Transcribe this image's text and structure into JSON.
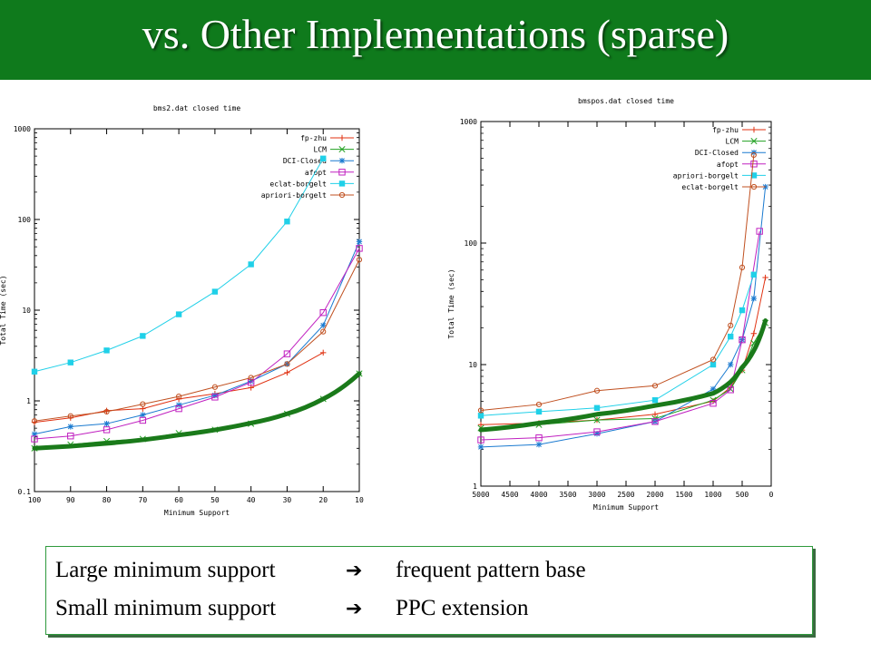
{
  "slide": {
    "title": "vs. Other Implementations (sparse)",
    "title_bar_color": "#0f7a1c",
    "notes": [
      {
        "label": "Large minimum support",
        "arrow": "➔",
        "result": "frequent pattern base"
      },
      {
        "label": "Small minimum support",
        "arrow": "➔",
        "result": "PPC extension"
      }
    ]
  },
  "chart_data": [
    {
      "type": "line",
      "title": "bms2.dat closed time",
      "xlabel": "Minimum Support",
      "ylabel": "Total Time (sec)",
      "y_scale": "log",
      "xlim": [
        100,
        10
      ],
      "ylim": [
        0.1,
        1000
      ],
      "x_ticks": [
        "100",
        "90",
        "80",
        "70",
        "60",
        "50",
        "40",
        "30",
        "20",
        "10"
      ],
      "y_ticks": [
        "0.1",
        "1",
        "10",
        "100",
        "1000"
      ],
      "legend_position": "top-right",
      "x": [
        100,
        90,
        80,
        70,
        60,
        50,
        40,
        30,
        20,
        10
      ],
      "series": [
        {
          "name": "fp-zhu",
          "color": "#e03010",
          "marker": "plus",
          "values": [
            0.58,
            0.65,
            0.78,
            0.82,
            1.05,
            1.2,
            1.4,
            2.05,
            3.4,
            null
          ]
        },
        {
          "name": "LCM",
          "color": "#20a020",
          "marker": "x",
          "values": [
            0.3,
            0.33,
            0.36,
            0.38,
            0.44,
            0.48,
            0.56,
            0.72,
            1.05,
            2.0
          ]
        },
        {
          "name": "DCI-Closed",
          "color": "#1a7ad0",
          "marker": "star",
          "values": [
            0.43,
            0.52,
            0.56,
            0.7,
            0.9,
            1.15,
            1.65,
            2.55,
            6.8,
            57
          ]
        },
        {
          "name": "afopt",
          "color": "#c020c0",
          "marker": "open-square",
          "values": [
            0.38,
            0.41,
            0.48,
            0.61,
            0.82,
            1.1,
            1.6,
            3.3,
            9.4,
            48
          ]
        },
        {
          "name": "eclat-borgelt",
          "color": "#20d0e8",
          "marker": "filled-square",
          "values": [
            2.1,
            2.65,
            3.6,
            5.2,
            9,
            16,
            32,
            95,
            470,
            null
          ]
        },
        {
          "name": "apriori-borgelt",
          "color": "#c05020",
          "marker": "circle",
          "values": [
            0.6,
            0.68,
            0.76,
            0.92,
            1.12,
            1.42,
            1.8,
            2.55,
            5.8,
            36
          ]
        }
      ],
      "annotation_curve": {
        "color": "#1a7a1a",
        "x": [
          100,
          80,
          60,
          40,
          30,
          20,
          10
        ],
        "values": [
          0.3,
          0.34,
          0.42,
          0.57,
          0.72,
          1.05,
          2.0
        ]
      }
    },
    {
      "type": "line",
      "title": "bmspos.dat closed time",
      "xlabel": "Minimum Support",
      "ylabel": "Total Time (sec)",
      "y_scale": "log",
      "xlim": [
        5000,
        0
      ],
      "ylim": [
        1,
        1000
      ],
      "x_ticks": [
        "5000",
        "4500",
        "4000",
        "3500",
        "3000",
        "2500",
        "2000",
        "1500",
        "1000",
        "500",
        "0"
      ],
      "y_ticks": [
        "1",
        "10",
        "100",
        "1000"
      ],
      "legend_position": "top-right",
      "series": [
        {
          "name": "fp-zhu",
          "color": "#e03010",
          "marker": "plus",
          "x": [
            5000,
            4000,
            3000,
            2000,
            1000,
            700,
            500,
            300,
            100
          ],
          "values": [
            3.2,
            3.3,
            3.5,
            3.9,
            5.0,
            6.5,
            9,
            18,
            52
          ]
        },
        {
          "name": "LCM",
          "color": "#20a020",
          "marker": "x",
          "x": [
            5000,
            4000,
            3000,
            2000,
            1000,
            700,
            500,
            300,
            100
          ],
          "values": [
            3.0,
            3.2,
            3.5,
            3.6,
            5.1,
            6.3,
            9,
            15,
            22
          ]
        },
        {
          "name": "DCI-Closed",
          "color": "#1a7ad0",
          "marker": "star",
          "x": [
            5000,
            4000,
            3000,
            2000,
            1000,
            700,
            500,
            300,
            100
          ],
          "values": [
            2.1,
            2.2,
            2.7,
            3.4,
            6.3,
            10,
            16,
            35,
            290
          ]
        },
        {
          "name": "afopt",
          "color": "#c020c0",
          "marker": "open-square",
          "x": [
            5000,
            4000,
            3000,
            2000,
            1000,
            700,
            500,
            200
          ],
          "values": [
            2.4,
            2.5,
            2.8,
            3.4,
            4.8,
            6.2,
            16,
            125
          ]
        },
        {
          "name": "apriori-borgelt",
          "color": "#20d0e8",
          "marker": "filled-square",
          "x": [
            5000,
            4000,
            3000,
            2000,
            1000,
            700,
            500,
            300
          ],
          "values": [
            3.8,
            4.1,
            4.4,
            5.1,
            10,
            17,
            28,
            55
          ]
        },
        {
          "name": "eclat-borgelt",
          "color": "#c05020",
          "marker": "circle",
          "x": [
            5000,
            4000,
            3000,
            2000,
            1000,
            700,
            500,
            300
          ],
          "values": [
            4.2,
            4.7,
            6.1,
            6.7,
            11,
            21,
            63,
            530
          ]
        }
      ],
      "annotation_curve": {
        "color": "#1a7a1a",
        "x": [
          5000,
          4000,
          3000,
          2000,
          1000,
          700,
          500,
          300,
          100
        ],
        "values": [
          2.9,
          3.3,
          3.9,
          4.6,
          5.8,
          7.2,
          9.5,
          13,
          23
        ]
      }
    }
  ]
}
